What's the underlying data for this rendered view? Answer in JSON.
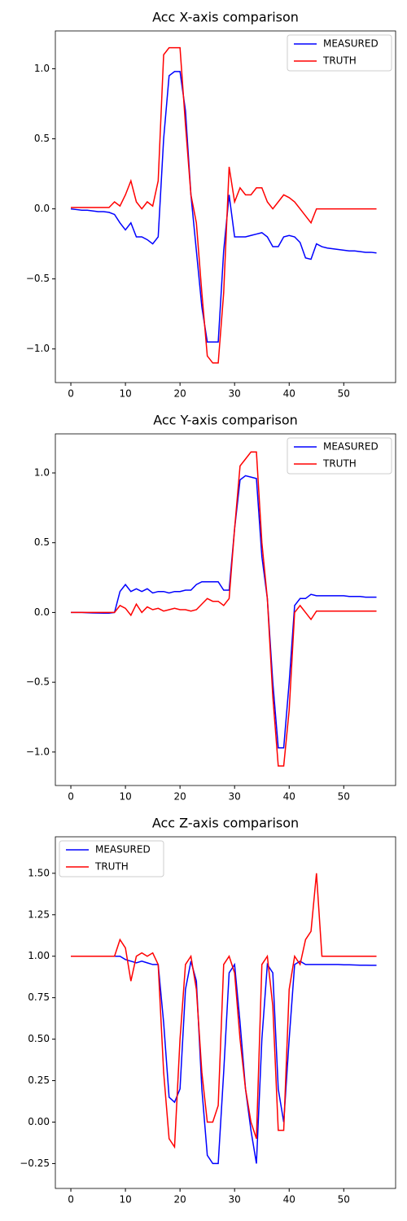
{
  "chart_data": [
    {
      "type": "line",
      "title": "Acc X-axis comparison",
      "x": [
        0,
        1,
        2,
        3,
        4,
        5,
        6,
        7,
        8,
        9,
        10,
        11,
        12,
        13,
        14,
        15,
        16,
        17,
        18,
        19,
        20,
        21,
        22,
        23,
        24,
        25,
        26,
        27,
        28,
        29,
        30,
        31,
        32,
        33,
        34,
        35,
        36,
        37,
        38,
        39,
        40,
        41,
        42,
        43,
        44,
        45,
        46,
        47,
        48,
        49,
        50,
        51,
        52,
        53,
        54,
        55,
        56
      ],
      "series": [
        {
          "name": "MEASURED",
          "color": "#0000ff",
          "values": [
            0,
            -0.005,
            -0.01,
            -0.01,
            -0.015,
            -0.02,
            -0.02,
            -0.025,
            -0.04,
            -0.1,
            -0.15,
            -0.1,
            -0.2,
            -0.2,
            -0.22,
            -0.25,
            -0.2,
            0.5,
            0.95,
            0.98,
            0.98,
            0.7,
            0.1,
            -0.3,
            -0.7,
            -0.95,
            -0.95,
            -0.95,
            -0.3,
            0.1,
            -0.2,
            -0.2,
            -0.2,
            -0.19,
            -0.18,
            -0.17,
            -0.2,
            -0.27,
            -0.27,
            -0.2,
            -0.19,
            -0.2,
            -0.24,
            -0.35,
            -0.36,
            -0.25,
            -0.27,
            -0.28,
            -0.285,
            -0.29,
            -0.295,
            -0.3,
            -0.3,
            -0.305,
            -0.31,
            -0.31,
            -0.315
          ]
        },
        {
          "name": "TRUTH",
          "color": "#ff0000",
          "values": [
            0.01,
            0.01,
            0.01,
            0.01,
            0.01,
            0.01,
            0.01,
            0.01,
            0.05,
            0.02,
            0.1,
            0.2,
            0.05,
            0.0,
            0.05,
            0.02,
            0.2,
            1.1,
            1.15,
            1.15,
            1.15,
            0.6,
            0.1,
            -0.1,
            -0.6,
            -1.05,
            -1.1,
            -1.1,
            -0.6,
            0.3,
            0.05,
            0.15,
            0.1,
            0.1,
            0.15,
            0.15,
            0.05,
            0.0,
            0.05,
            0.1,
            0.08,
            0.05,
            0.0,
            -0.05,
            -0.1,
            0.0,
            0.0,
            0.0,
            0.0,
            0.0,
            0.0,
            0.0,
            0.0,
            0.0,
            0.0,
            0.0,
            0.0
          ]
        }
      ],
      "xlim": [
        -2.84,
        59.5
      ],
      "ylim": [
        -1.24,
        1.27
      ],
      "xticks": [
        0,
        10,
        20,
        30,
        40,
        50
      ],
      "yticks": [
        {
          "value": -1.0,
          "label": "−1.0"
        },
        {
          "value": -0.5,
          "label": "−0.5"
        },
        {
          "value": 0.0,
          "label": "0.0"
        },
        {
          "value": 0.5,
          "label": "0.5"
        },
        {
          "value": 1.0,
          "label": "1.0"
        }
      ],
      "legend": "upper right"
    },
    {
      "type": "line",
      "title": "Acc Y-axis comparison",
      "x": [
        0,
        1,
        2,
        3,
        4,
        5,
        6,
        7,
        8,
        9,
        10,
        11,
        12,
        13,
        14,
        15,
        16,
        17,
        18,
        19,
        20,
        21,
        22,
        23,
        24,
        25,
        26,
        27,
        28,
        29,
        30,
        31,
        32,
        33,
        34,
        35,
        36,
        37,
        38,
        39,
        40,
        41,
        42,
        43,
        44,
        45,
        46,
        47,
        48,
        49,
        50,
        51,
        52,
        53,
        54,
        55,
        56
      ],
      "series": [
        {
          "name": "MEASURED",
          "color": "#0000ff",
          "values": [
            0,
            0,
            0,
            -0.002,
            -0.003,
            -0.004,
            -0.005,
            -0.005,
            0.0,
            0.15,
            0.2,
            0.15,
            0.17,
            0.15,
            0.17,
            0.14,
            0.15,
            0.15,
            0.14,
            0.15,
            0.15,
            0.16,
            0.16,
            0.2,
            0.22,
            0.22,
            0.22,
            0.22,
            0.16,
            0.16,
            0.6,
            0.95,
            0.98,
            0.97,
            0.96,
            0.4,
            0.1,
            -0.5,
            -0.97,
            -0.97,
            -0.5,
            0.05,
            0.1,
            0.1,
            0.13,
            0.12,
            0.12,
            0.12,
            0.12,
            0.12,
            0.12,
            0.115,
            0.115,
            0.115,
            0.11,
            0.11,
            0.11
          ]
        },
        {
          "name": "TRUTH",
          "color": "#ff0000",
          "values": [
            0,
            0,
            0,
            0,
            0,
            0,
            0,
            0,
            0,
            0.05,
            0.03,
            -0.02,
            0.06,
            0.0,
            0.04,
            0.02,
            0.03,
            0.01,
            0.02,
            0.03,
            0.02,
            0.02,
            0.01,
            0.02,
            0.06,
            0.1,
            0.08,
            0.08,
            0.05,
            0.1,
            0.6,
            1.05,
            1.1,
            1.15,
            1.15,
            0.5,
            0.1,
            -0.6,
            -1.1,
            -1.1,
            -0.7,
            0.0,
            0.05,
            0.0,
            -0.05,
            0.01,
            0.01,
            0.01,
            0.01,
            0.01,
            0.01,
            0.01,
            0.01,
            0.01,
            0.01,
            0.01,
            0.01
          ]
        }
      ],
      "xlim": [
        -2.84,
        59.5
      ],
      "ylim": [
        -1.24,
        1.28
      ],
      "xticks": [
        0,
        10,
        20,
        30,
        40,
        50
      ],
      "yticks": [
        {
          "value": -1.0,
          "label": "−1.0"
        },
        {
          "value": -0.5,
          "label": "−0.5"
        },
        {
          "value": 0.0,
          "label": "0.0"
        },
        {
          "value": 0.5,
          "label": "0.5"
        },
        {
          "value": 1.0,
          "label": "1.0"
        }
      ],
      "legend": "upper right"
    },
    {
      "type": "line",
      "title": "Acc Z-axis comparison",
      "x": [
        0,
        1,
        2,
        3,
        4,
        5,
        6,
        7,
        8,
        9,
        10,
        11,
        12,
        13,
        14,
        15,
        16,
        17,
        18,
        19,
        20,
        21,
        22,
        23,
        24,
        25,
        26,
        27,
        28,
        29,
        30,
        31,
        32,
        33,
        34,
        35,
        36,
        37,
        38,
        39,
        40,
        41,
        42,
        43,
        44,
        45,
        46,
        47,
        48,
        49,
        50,
        51,
        52,
        53,
        54,
        55,
        56
      ],
      "series": [
        {
          "name": "MEASURED",
          "color": "#0000ff",
          "values": [
            1.0,
            1.0,
            1.0,
            1.0,
            1.0,
            1.0,
            1.0,
            1.0,
            1.0,
            1.0,
            0.98,
            0.97,
            0.96,
            0.97,
            0.96,
            0.95,
            0.95,
            0.6,
            0.15,
            0.12,
            0.2,
            0.8,
            0.97,
            0.85,
            0.2,
            -0.2,
            -0.25,
            -0.25,
            0.3,
            0.9,
            0.95,
            0.6,
            0.2,
            -0.05,
            -0.25,
            0.5,
            0.95,
            0.9,
            0.2,
            0.0,
            0.5,
            0.95,
            0.97,
            0.95,
            0.95,
            0.95,
            0.95,
            0.95,
            0.95,
            0.95,
            0.948,
            0.948,
            0.947,
            0.946,
            0.946,
            0.945,
            0.945
          ]
        },
        {
          "name": "TRUTH",
          "color": "#ff0000",
          "values": [
            1.0,
            1.0,
            1.0,
            1.0,
            1.0,
            1.0,
            1.0,
            1.0,
            1.0,
            1.1,
            1.05,
            0.85,
            1.0,
            1.02,
            1.0,
            1.02,
            0.95,
            0.3,
            -0.1,
            -0.15,
            0.5,
            0.95,
            1.0,
            0.8,
            0.3,
            0.0,
            0.0,
            0.1,
            0.95,
            1.0,
            0.9,
            0.5,
            0.2,
            0.0,
            -0.1,
            0.95,
            1.0,
            0.7,
            -0.05,
            -0.05,
            0.8,
            1.0,
            0.95,
            1.1,
            1.15,
            1.5,
            1.0,
            1.0,
            1.0,
            1.0,
            1.0,
            1.0,
            1.0,
            1.0,
            1.0,
            1.0,
            1.0
          ]
        }
      ],
      "xlim": [
        -2.84,
        59.5
      ],
      "ylim": [
        -0.4,
        1.72
      ],
      "xticks": [
        0,
        10,
        20,
        30,
        40,
        50
      ],
      "yticks": [
        {
          "value": -0.25,
          "label": "−0.25"
        },
        {
          "value": 0.0,
          "label": "0.00"
        },
        {
          "value": 0.25,
          "label": "0.25"
        },
        {
          "value": 0.5,
          "label": "0.50"
        },
        {
          "value": 0.75,
          "label": "0.75"
        },
        {
          "value": 1.0,
          "label": "1.00"
        },
        {
          "value": 1.25,
          "label": "1.25"
        },
        {
          "value": 1.5,
          "label": "1.50"
        }
      ],
      "legend": "upper left"
    }
  ]
}
